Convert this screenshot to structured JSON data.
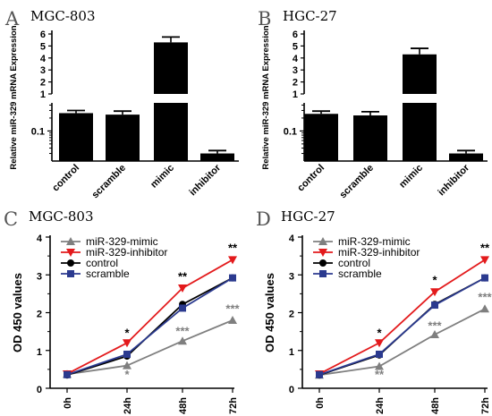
{
  "chart_data": [
    {
      "panel": "A",
      "title": "MGC-803",
      "type": "bar",
      "ylabel": "Relative miR-329 mRNA Expression",
      "yscale": "broken (log below break, linear above)",
      "lower_ticks": [
        "0.1"
      ],
      "upper_ticks": [
        "1",
        "2",
        "3",
        "4",
        "5",
        "6"
      ],
      "categories": [
        "control",
        "scramble",
        "mimic",
        "inhibitor"
      ],
      "values": [
        0.26,
        0.24,
        5.3,
        0.03
      ],
      "errors": [
        0.04,
        0.05,
        0.45,
        0.005
      ],
      "colors": {
        "bar": "#000000"
      }
    },
    {
      "panel": "B",
      "title": "HGC-27",
      "type": "bar",
      "ylabel": "Relative miR-329 mRNA Expression",
      "yscale": "broken (log below break, linear above)",
      "lower_ticks": [
        "0.1"
      ],
      "upper_ticks": [
        "1",
        "2",
        "3",
        "4",
        "5",
        "6"
      ],
      "categories": [
        "control",
        "scramble",
        "mimic",
        "inhibitor"
      ],
      "values": [
        0.25,
        0.23,
        4.3,
        0.03
      ],
      "errors": [
        0.04,
        0.05,
        0.5,
        0.005
      ],
      "colors": {
        "bar": "#000000"
      }
    },
    {
      "panel": "C",
      "title": "MGC-803",
      "type": "line",
      "ylabel": "OD 450 values",
      "x": [
        "0h",
        "24h",
        "48h",
        "72h"
      ],
      "ylim": [
        0,
        4
      ],
      "yticks": [
        "0",
        "1",
        "2",
        "3",
        "4"
      ],
      "series": [
        {
          "name": "miR-329-mimic",
          "values": [
            0.37,
            0.6,
            1.25,
            1.8
          ],
          "color": "#7f7f7f",
          "marker": "triangle-up"
        },
        {
          "name": "miR-329-inhibitor",
          "values": [
            0.38,
            1.2,
            2.65,
            3.4
          ],
          "color": "#e31a1c",
          "marker": "triangle-down"
        },
        {
          "name": "control",
          "values": [
            0.35,
            0.85,
            2.22,
            2.92
          ],
          "color": "#000000",
          "marker": "circle"
        },
        {
          "name": "scramble",
          "values": [
            0.36,
            0.9,
            2.12,
            2.92
          ],
          "color": "#2b3a8f",
          "marker": "square"
        }
      ],
      "annotations": [
        {
          "text": "*",
          "x": "24h",
          "y": 1.45,
          "color": "#000000"
        },
        {
          "text": "*",
          "x": "24h",
          "y": 0.35,
          "color": "#7f7f7f"
        },
        {
          "text": "**",
          "x": "48h",
          "y": 2.95,
          "color": "#000000"
        },
        {
          "text": "***",
          "x": "48h",
          "y": 1.5,
          "color": "#7f7f7f"
        },
        {
          "text": "**",
          "x": "72h",
          "y": 3.7,
          "color": "#000000"
        },
        {
          "text": "***",
          "x": "72h",
          "y": 2.1,
          "color": "#7f7f7f"
        }
      ],
      "legend": "top-left"
    },
    {
      "panel": "D",
      "title": "HGC-27",
      "type": "line",
      "ylabel": "OD 450 values",
      "x": [
        "0h",
        "24h",
        "48h",
        "72h"
      ],
      "ylim": [
        0,
        4
      ],
      "yticks": [
        "0",
        "1",
        "2",
        "3",
        "4"
      ],
      "series": [
        {
          "name": "miR-329-mimic",
          "values": [
            0.35,
            0.58,
            1.42,
            2.1
          ],
          "color": "#7f7f7f",
          "marker": "triangle-up"
        },
        {
          "name": "miR-329-inhibitor",
          "values": [
            0.38,
            1.2,
            2.55,
            3.4
          ],
          "color": "#e31a1c",
          "marker": "triangle-down"
        },
        {
          "name": "control",
          "values": [
            0.35,
            0.88,
            2.22,
            2.92
          ],
          "color": "#000000",
          "marker": "circle"
        },
        {
          "name": "scramble",
          "values": [
            0.36,
            0.9,
            2.2,
            2.92
          ],
          "color": "#2b3a8f",
          "marker": "square"
        }
      ],
      "annotations": [
        {
          "text": "*",
          "x": "24h",
          "y": 1.45,
          "color": "#000000"
        },
        {
          "text": "**",
          "x": "24h",
          "y": 0.35,
          "color": "#7f7f7f"
        },
        {
          "text": "*",
          "x": "48h",
          "y": 2.85,
          "color": "#000000"
        },
        {
          "text": "***",
          "x": "48h",
          "y": 1.65,
          "color": "#7f7f7f"
        },
        {
          "text": "**",
          "x": "72h",
          "y": 3.7,
          "color": "#000000"
        },
        {
          "text": "***",
          "x": "72h",
          "y": 2.4,
          "color": "#7f7f7f"
        }
      ],
      "legend": "top-left"
    }
  ]
}
